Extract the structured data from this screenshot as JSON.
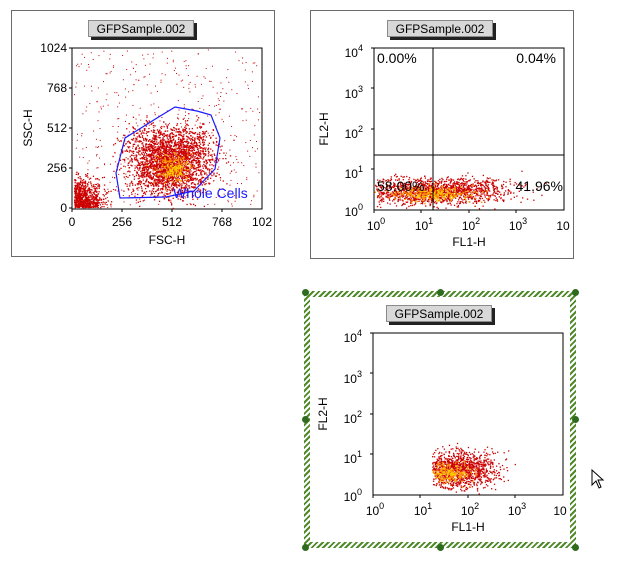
{
  "plots": [
    {
      "id": "scatter",
      "title": "GFPSample.002",
      "xlabel": "FSC-H",
      "ylabel": "SSC-H",
      "xticks": [
        "0",
        "256",
        "512",
        "768",
        "102"
      ],
      "yticks": [
        "1024",
        "768",
        "512",
        "256",
        "0"
      ],
      "gate_label": "Whole Cells",
      "gate_color": "#1a1aff"
    },
    {
      "id": "quad",
      "title": "GFPSample.002",
      "xlabel": "FL1-H",
      "ylabel": "FL2-H",
      "xticks": [
        "10",
        "10",
        "10",
        "10",
        "10"
      ],
      "xexp": [
        "0",
        "1",
        "2",
        "3",
        ""
      ],
      "yticks": [
        "10",
        "10",
        "10",
        "10",
        "10"
      ],
      "yexp": [
        "4",
        "3",
        "2",
        "1",
        "0"
      ],
      "quadrants": {
        "ul": "0.00%",
        "ur": "0.04%",
        "ll": "58.00%",
        "lr": "41.96%"
      }
    },
    {
      "id": "gated",
      "title": "GFPSample.002",
      "xlabel": "FL1-H",
      "ylabel": "FL2-H",
      "xticks": [
        "10",
        "10",
        "10",
        "10",
        "10"
      ],
      "xexp": [
        "0",
        "1",
        "2",
        "3",
        ""
      ],
      "yticks": [
        "10",
        "10",
        "10",
        "10",
        "10"
      ],
      "yexp": [
        "4",
        "3",
        "2",
        "1",
        "0"
      ]
    }
  ],
  "colors": {
    "dot": "#cc0000",
    "dense": "#ff9900",
    "core": "#ffcc00",
    "selection": "#2f6b1e"
  },
  "icons": [
    "mouse-pointer-icon"
  ]
}
